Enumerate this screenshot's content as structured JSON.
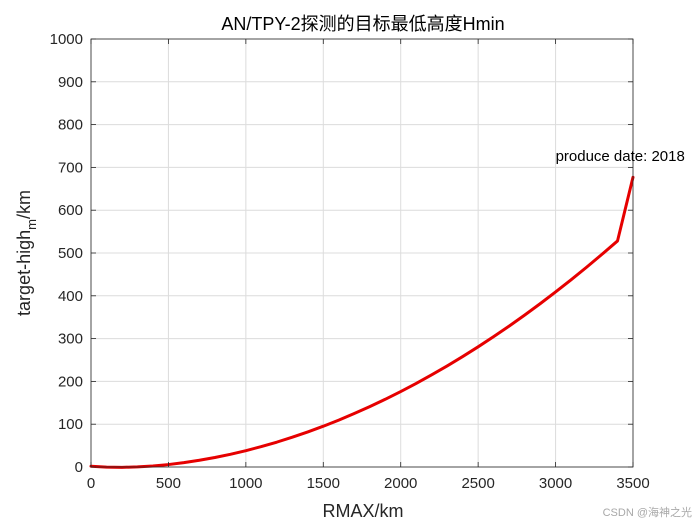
{
  "chart_data": {
    "type": "line",
    "title": "AN/TPY-2探测的目标最低高度Hmin",
    "xlabel": "RMAX/km",
    "ylabel": "target-high",
    "ylabel_subscript": "m",
    "ylabel_suffix": "/km",
    "xlim": [
      0,
      3500
    ],
    "ylim": [
      0,
      1000
    ],
    "xticks": [
      0,
      500,
      1000,
      1500,
      2000,
      2500,
      3000,
      3500
    ],
    "yticks": [
      0,
      100,
      200,
      300,
      400,
      500,
      600,
      700,
      800,
      900,
      1000
    ],
    "grid": true,
    "series": [
      {
        "color": "#e60000",
        "x": [
          0,
          100,
          200,
          300,
          400,
          500,
          600,
          700,
          800,
          900,
          1000,
          1100,
          1200,
          1300,
          1400,
          1500,
          1600,
          1700,
          1800,
          1900,
          2000,
          2100,
          2200,
          2300,
          2400,
          2500,
          2600,
          2700,
          2800,
          2900,
          3000,
          3100,
          3200,
          3300,
          3400,
          3500
        ],
        "y": [
          1.8,
          -0.3,
          -0.8,
          0.2,
          2.4,
          5.7,
          10.2,
          15.7,
          22.2,
          29.7,
          38.2,
          47.7,
          58.1,
          69.6,
          82.0,
          95.3,
          109.6,
          124.9,
          141.1,
          158.2,
          176.3,
          195.3,
          215.3,
          236.2,
          258.0,
          280.8,
          304.5,
          329.2,
          354.8,
          381.4,
          408.9,
          437.3,
          466.7,
          497.0,
          528.2,
          677.0
        ]
      }
    ],
    "annotations": [
      {
        "text": "produce date: 2018",
        "x": 3000,
        "y": 715
      }
    ]
  },
  "watermark": "CSDN @海神之光"
}
